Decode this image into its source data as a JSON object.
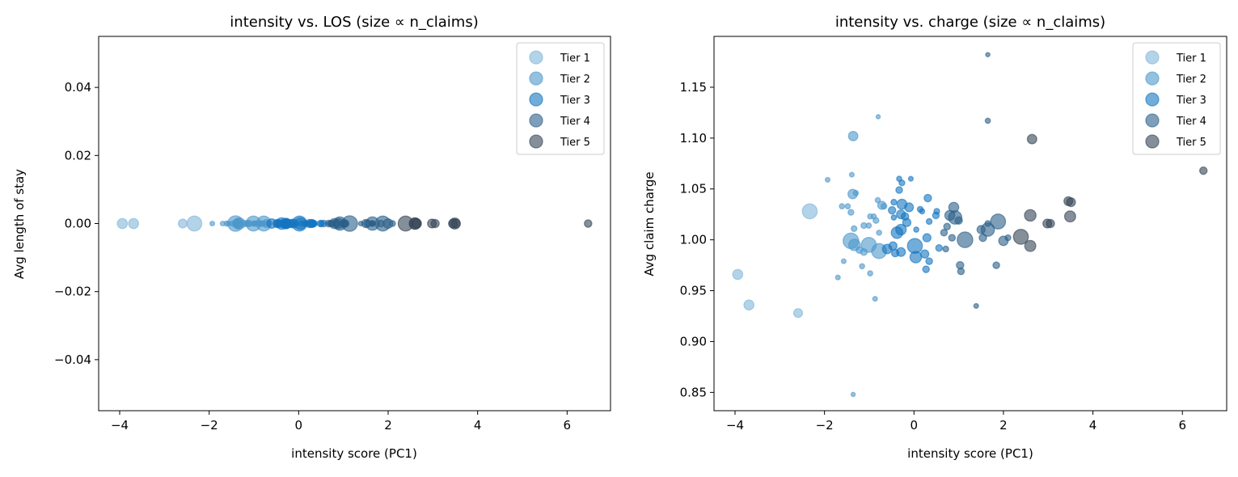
{
  "tier_colors": {
    "Tier 1": "#80b6d9",
    "Tier 2": "#4d98cb",
    "Tier 3": "#1475c0",
    "Tier 4": "#2a5f89",
    "Tier 5": "#344455"
  },
  "legend": [
    "Tier 1",
    "Tier 2",
    "Tier 3",
    "Tier 4",
    "Tier 5"
  ],
  "points_columns": [
    "intensity_score",
    "avg_claim_charge",
    "n_claims",
    "tier"
  ],
  "points": [
    [
      -3.94,
      0.966,
      45,
      "Tier 1"
    ],
    [
      -3.69,
      0.936,
      45,
      "Tier 1"
    ],
    [
      -2.59,
      0.928,
      35,
      "Tier 1"
    ],
    [
      -2.33,
      1.028,
      100,
      "Tier 1"
    ],
    [
      -1.93,
      1.059,
      10,
      "Tier 2"
    ],
    [
      -1.39,
      1.064,
      10,
      "Tier 2"
    ],
    [
      -1.36,
      1.102,
      40,
      "Tier 2"
    ],
    [
      -1.37,
      1.045,
      40,
      "Tier 2"
    ],
    [
      -1.3,
      1.046,
      12,
      "Tier 2"
    ],
    [
      -1.61,
      1.033,
      12,
      "Tier 2"
    ],
    [
      -1.48,
      1.033,
      12,
      "Tier 2"
    ],
    [
      -1.41,
      1.027,
      15,
      "Tier 2"
    ],
    [
      -1.34,
      1.011,
      15,
      "Tier 2"
    ],
    [
      -1.12,
      1.014,
      15,
      "Tier 2"
    ],
    [
      -1.01,
      1.014,
      12,
      "Tier 2"
    ],
    [
      -0.98,
      1.023,
      12,
      "Tier 2"
    ],
    [
      -0.9,
      1.023,
      12,
      "Tier 2"
    ],
    [
      -0.85,
      1.019,
      15,
      "Tier 2"
    ],
    [
      -0.81,
      1.039,
      12,
      "Tier 2"
    ],
    [
      -0.72,
      1.034,
      30,
      "Tier 2"
    ],
    [
      -0.67,
      1.033,
      15,
      "Tier 2"
    ],
    [
      -1.41,
      0.999,
      110,
      "Tier 2"
    ],
    [
      -1.33,
      0.995,
      60,
      "Tier 2"
    ],
    [
      -1.01,
      0.995,
      100,
      "Tier 2"
    ],
    [
      -0.78,
      0.989,
      100,
      "Tier 2"
    ],
    [
      -1.57,
      0.979,
      10,
      "Tier 2"
    ],
    [
      -1.16,
      0.974,
      12,
      "Tier 2"
    ],
    [
      -0.98,
      0.967,
      12,
      "Tier 2"
    ],
    [
      -1.7,
      0.963,
      10,
      "Tier 2"
    ],
    [
      -0.87,
      0.942,
      10,
      "Tier 2"
    ],
    [
      -0.8,
      1.121,
      8,
      "Tier 2"
    ],
    [
      -1.36,
      0.848,
      8,
      "Tier 2"
    ],
    [
      -0.78,
      1.007,
      12,
      "Tier 2"
    ],
    [
      -1.12,
      0.988,
      20,
      "Tier 2"
    ],
    [
      -1.22,
      0.99,
      20,
      "Tier 2"
    ],
    [
      -0.33,
      1.06,
      12,
      "Tier 3"
    ],
    [
      -0.07,
      1.06,
      10,
      "Tier 3"
    ],
    [
      -0.27,
      1.056,
      15,
      "Tier 3"
    ],
    [
      -0.33,
      1.049,
      20,
      "Tier 3"
    ],
    [
      -0.45,
      1.037,
      15,
      "Tier 3"
    ],
    [
      -0.27,
      1.035,
      45,
      "Tier 3"
    ],
    [
      -0.11,
      1.032,
      35,
      "Tier 3"
    ],
    [
      -0.49,
      1.029,
      25,
      "Tier 3"
    ],
    [
      0.31,
      1.041,
      25,
      "Tier 3"
    ],
    [
      0.14,
      1.03,
      15,
      "Tier 3"
    ],
    [
      0.18,
      1.028,
      12,
      "Tier 3"
    ],
    [
      0.51,
      1.028,
      15,
      "Tier 3"
    ],
    [
      0.49,
      1.024,
      20,
      "Tier 3"
    ],
    [
      -0.29,
      1.025,
      35,
      "Tier 3"
    ],
    [
      -0.2,
      1.023,
      25,
      "Tier 3"
    ],
    [
      -0.16,
      1.017,
      30,
      "Tier 3"
    ],
    [
      -0.45,
      1.022,
      12,
      "Tier 3"
    ],
    [
      0.34,
      1.018,
      15,
      "Tier 3"
    ],
    [
      0.05,
      1.01,
      12,
      "Tier 3"
    ],
    [
      -0.38,
      1.007,
      60,
      "Tier 3"
    ],
    [
      -0.29,
      1.01,
      50,
      "Tier 3"
    ],
    [
      0.29,
      1.002,
      30,
      "Tier 3"
    ],
    [
      -0.6,
      0.991,
      40,
      "Tier 3"
    ],
    [
      -0.47,
      0.994,
      30,
      "Tier 3"
    ],
    [
      0.02,
      0.994,
      100,
      "Tier 3"
    ],
    [
      0.04,
      0.983,
      60,
      "Tier 3"
    ],
    [
      -0.29,
      0.988,
      35,
      "Tier 3"
    ],
    [
      -0.42,
      0.987,
      25,
      "Tier 3"
    ],
    [
      0.24,
      0.986,
      30,
      "Tier 3"
    ],
    [
      0.56,
      0.992,
      20,
      "Tier 3"
    ],
    [
      0.34,
      0.979,
      20,
      "Tier 3"
    ],
    [
      0.27,
      0.971,
      20,
      "Tier 3"
    ],
    [
      0.89,
      1.032,
      45,
      "Tier 4"
    ],
    [
      0.8,
      1.024,
      45,
      "Tier 4"
    ],
    [
      0.92,
      1.022,
      80,
      "Tier 4"
    ],
    [
      1.0,
      1.019,
      25,
      "Tier 4"
    ],
    [
      0.74,
      1.013,
      20,
      "Tier 4"
    ],
    [
      0.67,
      1.007,
      20,
      "Tier 4"
    ],
    [
      0.85,
      1.002,
      20,
      "Tier 4"
    ],
    [
      1.14,
      1.0,
      110,
      "Tier 4"
    ],
    [
      0.71,
      0.991,
      15,
      "Tier 4"
    ],
    [
      1.03,
      0.975,
      25,
      "Tier 4"
    ],
    [
      1.05,
      0.969,
      20,
      "Tier 4"
    ],
    [
      1.65,
      1.117,
      12,
      "Tier 4"
    ],
    [
      1.65,
      1.182,
      8,
      "Tier 4"
    ],
    [
      1.88,
      1.018,
      100,
      "Tier 4"
    ],
    [
      2.0,
      0.999,
      40,
      "Tier 4"
    ],
    [
      2.1,
      1.002,
      15,
      "Tier 4"
    ],
    [
      1.65,
      1.01,
      80,
      "Tier 4"
    ],
    [
      1.5,
      1.01,
      30,
      "Tier 4"
    ],
    [
      1.54,
      1.002,
      25,
      "Tier 4"
    ],
    [
      1.65,
      1.016,
      15,
      "Tier 4"
    ],
    [
      1.84,
      0.975,
      20,
      "Tier 4"
    ],
    [
      1.39,
      0.935,
      10,
      "Tier 4"
    ],
    [
      2.64,
      1.099,
      40,
      "Tier 5"
    ],
    [
      6.47,
      1.068,
      25,
      "Tier 5"
    ],
    [
      3.45,
      1.038,
      35,
      "Tier 5"
    ],
    [
      3.51,
      1.037,
      35,
      "Tier 5"
    ],
    [
      3.49,
      1.023,
      55,
      "Tier 5"
    ],
    [
      2.6,
      1.024,
      60,
      "Tier 5"
    ],
    [
      2.98,
      1.016,
      35,
      "Tier 5"
    ],
    [
      3.05,
      1.016,
      30,
      "Tier 5"
    ],
    [
      2.39,
      1.003,
      100,
      "Tier 5"
    ],
    [
      2.6,
      0.994,
      55,
      "Tier 5"
    ]
  ],
  "chart_data": [
    {
      "type": "scatter",
      "title": "intensity vs. LOS (size ∝ n_claims)",
      "xlabel": "intensity score (PC1)",
      "ylabel": "Avg length of stay",
      "xlim": [
        -4.47,
        6.97
      ],
      "ylim": [
        -0.055,
        0.055
      ],
      "xticks": [
        -4,
        -2,
        0,
        2,
        4,
        6
      ],
      "xtick_labels": [
        "−4",
        "−2",
        "0",
        "2",
        "4",
        "6"
      ],
      "yticks": [
        0.04,
        0.02,
        0.0,
        -0.02,
        -0.04
      ],
      "ytick_labels": [
        "0.04",
        "0.02",
        "0.00",
        "−0.02",
        "−0.04"
      ],
      "y_value": 0,
      "legend_position": "top-right",
      "grid": false
    },
    {
      "type": "scatter",
      "title": "intensity vs. charge (size ∝ n_claims)",
      "xlabel": "intensity score (PC1)",
      "ylabel": "Avg claim charge",
      "xlim": [
        -4.47,
        6.99
      ],
      "ylim": [
        0.832,
        1.2
      ],
      "xticks": [
        -4,
        -2,
        0,
        2,
        4,
        6
      ],
      "xtick_labels": [
        "−4",
        "−2",
        "0",
        "2",
        "4",
        "6"
      ],
      "yticks": [
        1.15,
        1.1,
        1.05,
        1.0,
        0.95,
        0.9,
        0.85
      ],
      "ytick_labels": [
        "1.15",
        "1.10",
        "1.05",
        "1.00",
        "0.95",
        "0.90",
        "0.85"
      ],
      "legend_position": "top-right",
      "grid": false
    }
  ]
}
